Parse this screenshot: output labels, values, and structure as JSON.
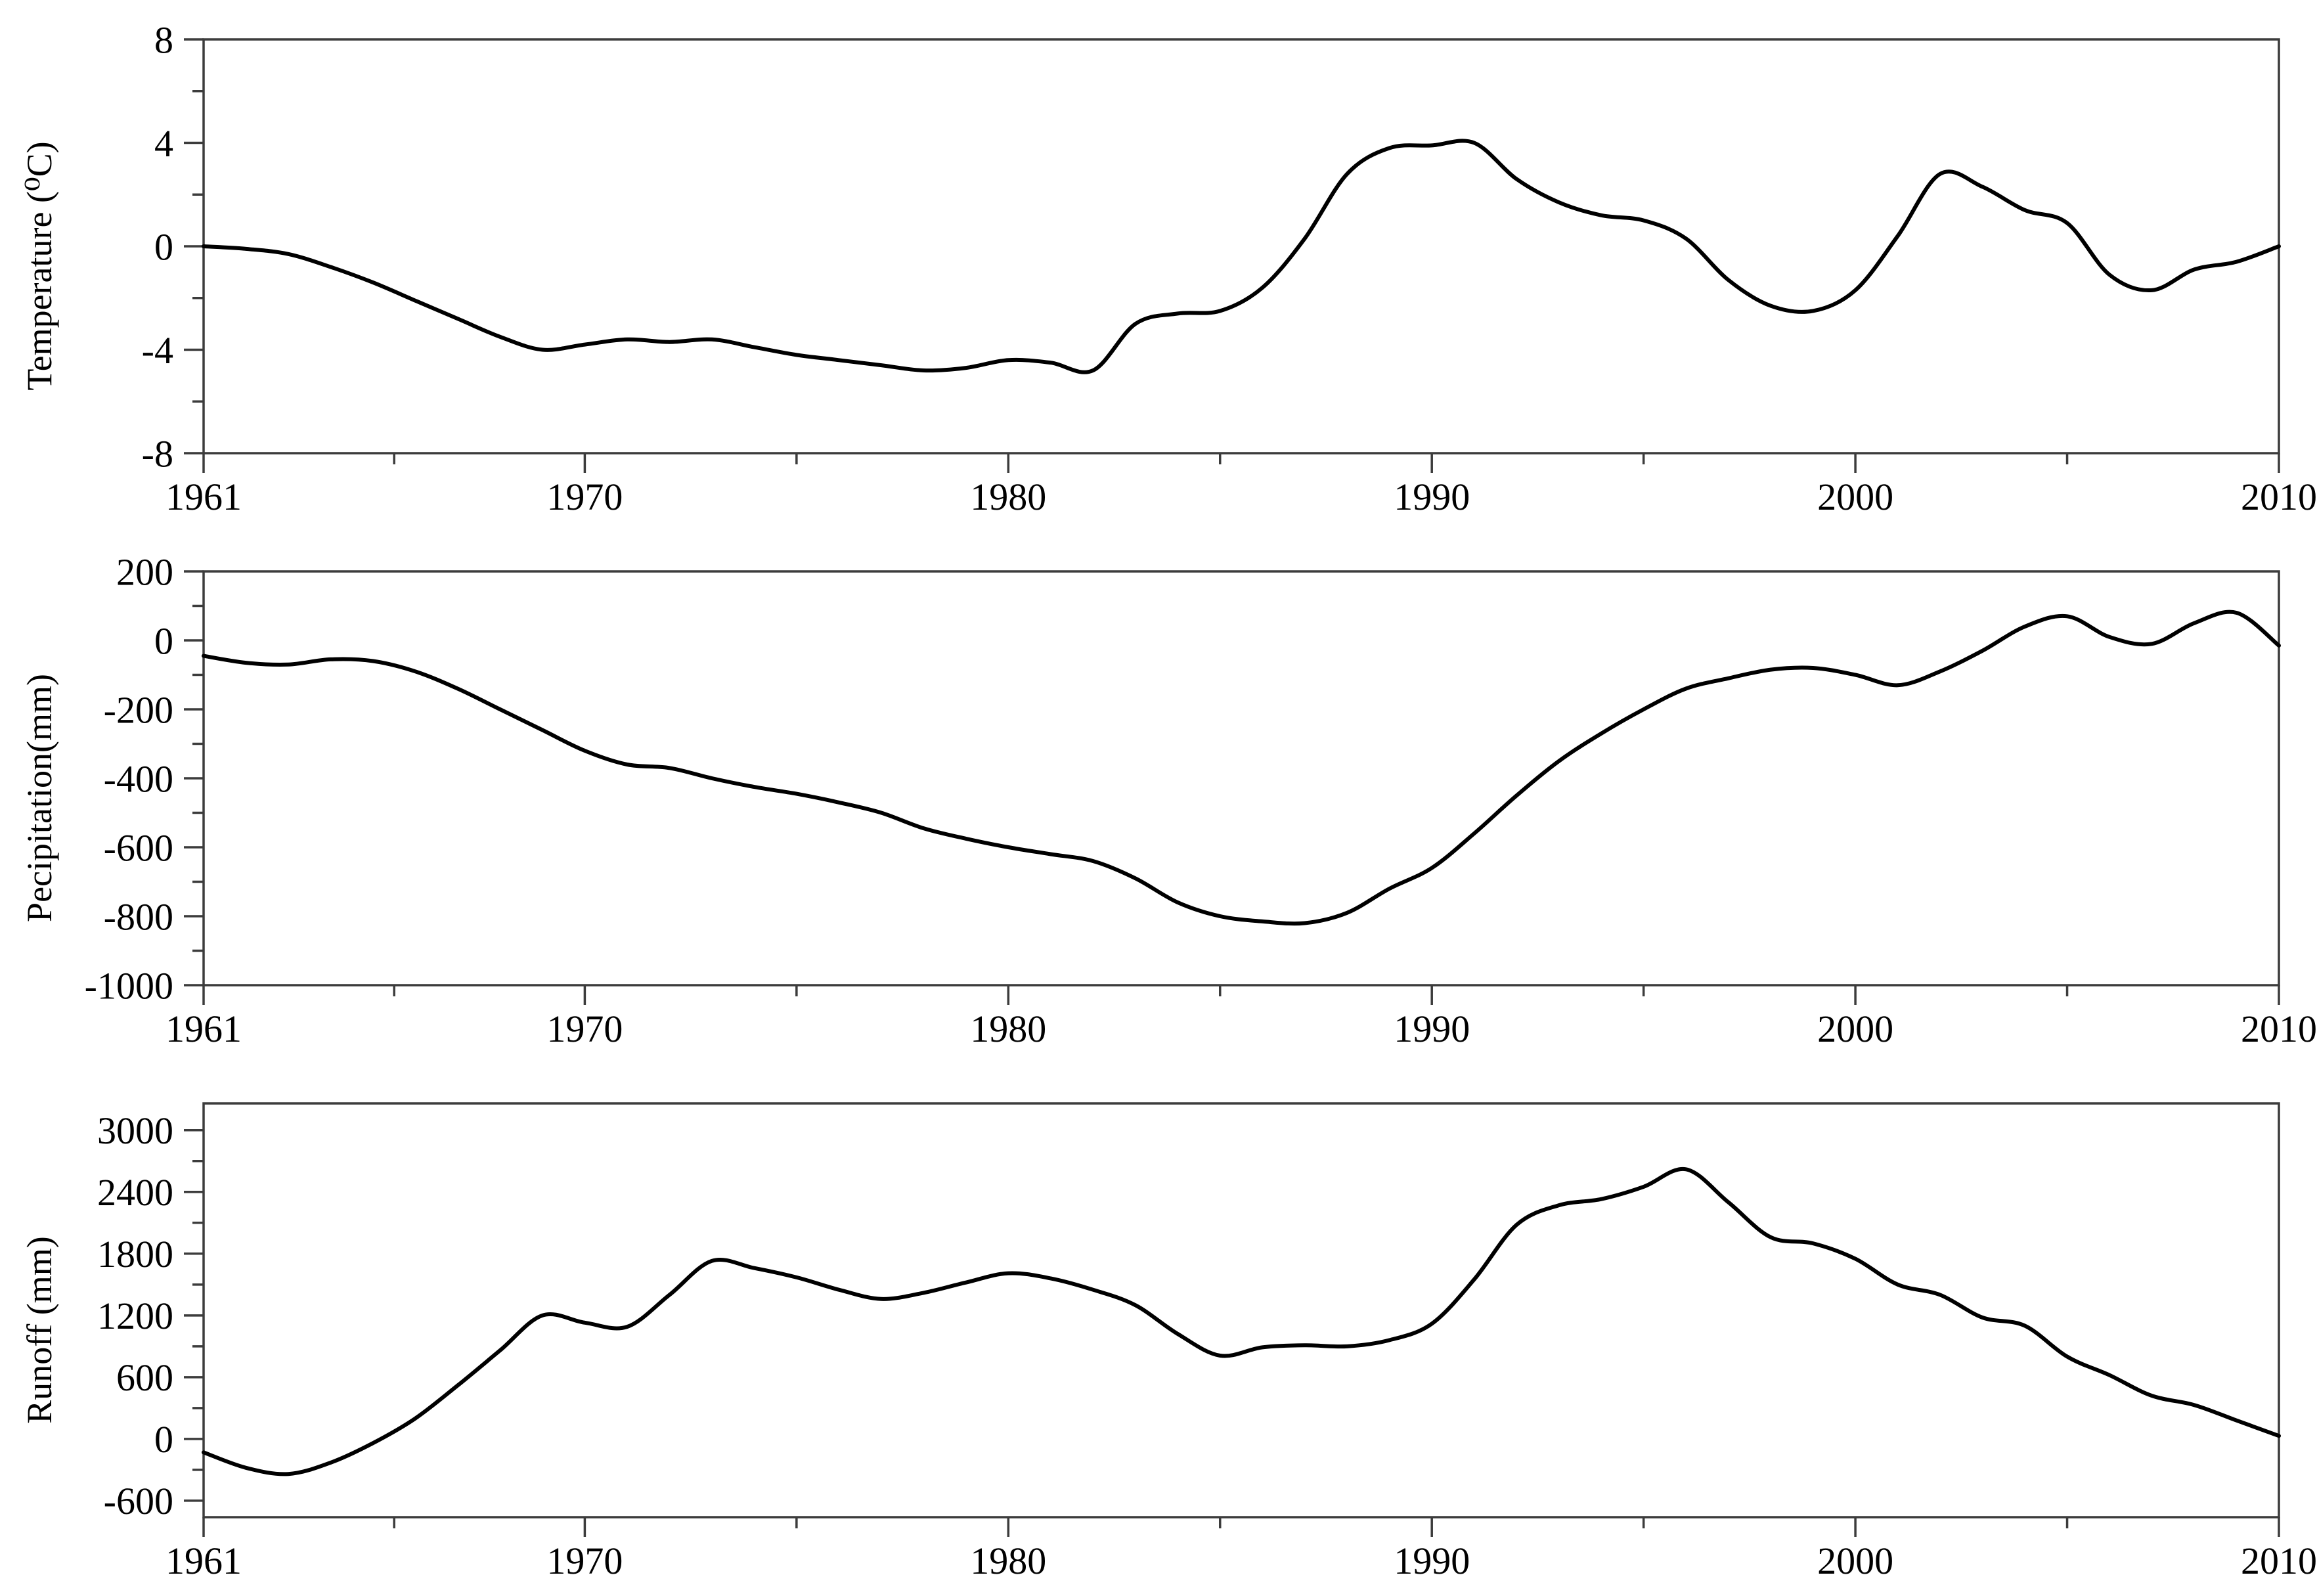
{
  "figure": {
    "background": "#ffffff",
    "colors": {
      "line": "#000000",
      "axis": "#3c3c3c",
      "text": "#000000"
    }
  },
  "chart_data": [
    {
      "type": "line",
      "title": "",
      "xlabel": "",
      "ylabel": "Temperature (⁰C)",
      "years": [
        1961,
        1962,
        1963,
        1964,
        1965,
        1966,
        1967,
        1968,
        1969,
        1970,
        1971,
        1972,
        1973,
        1974,
        1975,
        1976,
        1977,
        1978,
        1979,
        1980,
        1981,
        1982,
        1983,
        1984,
        1985,
        1986,
        1987,
        1988,
        1989,
        1990,
        1991,
        1992,
        1993,
        1994,
        1995,
        1996,
        1997,
        1998,
        1999,
        2000,
        2001,
        2002,
        2003,
        2004,
        2005,
        2006,
        2007,
        2008,
        2009,
        2010
      ],
      "values": [
        0.0,
        -0.1,
        -0.3,
        -0.8,
        -1.4,
        -2.1,
        -2.8,
        -3.5,
        -4.0,
        -3.8,
        -3.6,
        -3.7,
        -3.6,
        -3.9,
        -4.2,
        -4.4,
        -4.6,
        -4.8,
        -4.7,
        -4.4,
        -4.5,
        -4.8,
        -3.0,
        -2.6,
        -2.5,
        -1.6,
        0.3,
        2.8,
        3.8,
        3.9,
        4.0,
        2.6,
        1.7,
        1.2,
        1.0,
        0.3,
        -1.3,
        -2.3,
        -2.5,
        -1.7,
        0.4,
        2.8,
        2.3,
        1.4,
        0.9,
        -1.1,
        -1.7,
        -0.9,
        -0.6,
        0.0
      ],
      "ylim": [
        -8,
        8
      ],
      "yticks_major": [
        8,
        4,
        0,
        -4,
        -8
      ],
      "ytick_labels": [
        "8",
        "4",
        "0",
        "-4",
        "-8"
      ],
      "yticks_minor": [
        6,
        2,
        -2,
        -6
      ],
      "xlim": [
        1961,
        2010
      ],
      "xticks_major": [
        1961,
        1970,
        1980,
        1990,
        2000,
        2010
      ],
      "xtick_labels": [
        "1961",
        "1970",
        "1980",
        "1990",
        "2000",
        "2010"
      ],
      "xticks_minor": [
        1965.5,
        1975,
        1985,
        1995,
        2005
      ],
      "grid": false,
      "legend": null,
      "line_color": "#000000"
    },
    {
      "type": "line",
      "title": "",
      "xlabel": "",
      "ylabel": "Pecipitation(mm)",
      "years": [
        1961,
        1962,
        1963,
        1964,
        1965,
        1966,
        1967,
        1968,
        1969,
        1970,
        1971,
        1972,
        1973,
        1974,
        1975,
        1976,
        1977,
        1978,
        1979,
        1980,
        1981,
        1982,
        1983,
        1984,
        1985,
        1986,
        1987,
        1988,
        1989,
        1990,
        1991,
        1992,
        1993,
        1994,
        1995,
        1996,
        1997,
        1998,
        1999,
        2000,
        2001,
        2002,
        2003,
        2004,
        2005,
        2006,
        2007,
        2008,
        2009,
        2010
      ],
      "values": [
        -45,
        -65,
        -70,
        -55,
        -60,
        -90,
        -140,
        -200,
        -260,
        -320,
        -360,
        -370,
        -400,
        -425,
        -445,
        -470,
        -500,
        -545,
        -575,
        -600,
        -620,
        -640,
        -690,
        -760,
        -800,
        -815,
        -820,
        -790,
        -720,
        -660,
        -560,
        -450,
        -350,
        -270,
        -200,
        -140,
        -110,
        -85,
        -80,
        -100,
        -130,
        -90,
        -30,
        40,
        70,
        10,
        -10,
        50,
        80,
        -15
      ],
      "ylim": [
        -1000,
        200
      ],
      "yticks_major": [
        200,
        0,
        -200,
        -400,
        -600,
        -800,
        -1000
      ],
      "ytick_labels": [
        "200",
        "0",
        "-200",
        "-400",
        "-600",
        "-800",
        "-1000"
      ],
      "yticks_minor": [
        100,
        -100,
        -300,
        -500,
        -700,
        -900
      ],
      "xlim": [
        1961,
        2010
      ],
      "xticks_major": [
        1961,
        1970,
        1980,
        1990,
        2000,
        2010
      ],
      "xtick_labels": [
        "1961",
        "1970",
        "1980",
        "1990",
        "2000",
        "2010"
      ],
      "xticks_minor": [
        1965.5,
        1975,
        1985,
        1995,
        2005
      ],
      "grid": false,
      "legend": null,
      "line_color": "#000000"
    },
    {
      "type": "line",
      "title": "",
      "xlabel": "",
      "ylabel": "Runoff (mm)",
      "years": [
        1961,
        1962,
        1963,
        1964,
        1965,
        1966,
        1967,
        1968,
        1969,
        1970,
        1971,
        1972,
        1973,
        1974,
        1975,
        1976,
        1977,
        1978,
        1979,
        1980,
        1981,
        1982,
        1983,
        1984,
        1985,
        1986,
        1987,
        1988,
        1989,
        1990,
        1991,
        1992,
        1993,
        1994,
        1995,
        1996,
        1997,
        1998,
        1999,
        2000,
        2001,
        2002,
        2003,
        2004,
        2005,
        2006,
        2007,
        2008,
        2009,
        2010
      ],
      "values": [
        -130,
        -280,
        -340,
        -230,
        -40,
        200,
        520,
        860,
        1200,
        1130,
        1090,
        1400,
        1730,
        1660,
        1570,
        1450,
        1360,
        1420,
        1520,
        1610,
        1560,
        1450,
        1300,
        1020,
        810,
        890,
        910,
        900,
        960,
        1120,
        1550,
        2080,
        2270,
        2330,
        2450,
        2620,
        2300,
        1960,
        1900,
        1750,
        1500,
        1400,
        1180,
        1100,
        800,
        620,
        420,
        330,
        180,
        30
      ],
      "ylim": [
        -760,
        3260
      ],
      "yticks_major": [
        3000,
        2400,
        1800,
        1200,
        600,
        0,
        -600
      ],
      "ytick_labels": [
        "3000",
        "2400",
        "1800",
        "1200",
        "600",
        "0",
        "-600"
      ],
      "yticks_minor": [
        2700,
        2100,
        1500,
        900,
        300,
        -300
      ],
      "xlim": [
        1961,
        2010
      ],
      "xticks_major": [
        1961,
        1970,
        1980,
        1990,
        2000,
        2010
      ],
      "xtick_labels": [
        "1961",
        "1970",
        "1980",
        "1990",
        "2000",
        "2010"
      ],
      "xticks_minor": [
        1965.5,
        1975,
        1985,
        1995,
        2005
      ],
      "grid": false,
      "legend": null,
      "line_color": "#000000"
    }
  ]
}
